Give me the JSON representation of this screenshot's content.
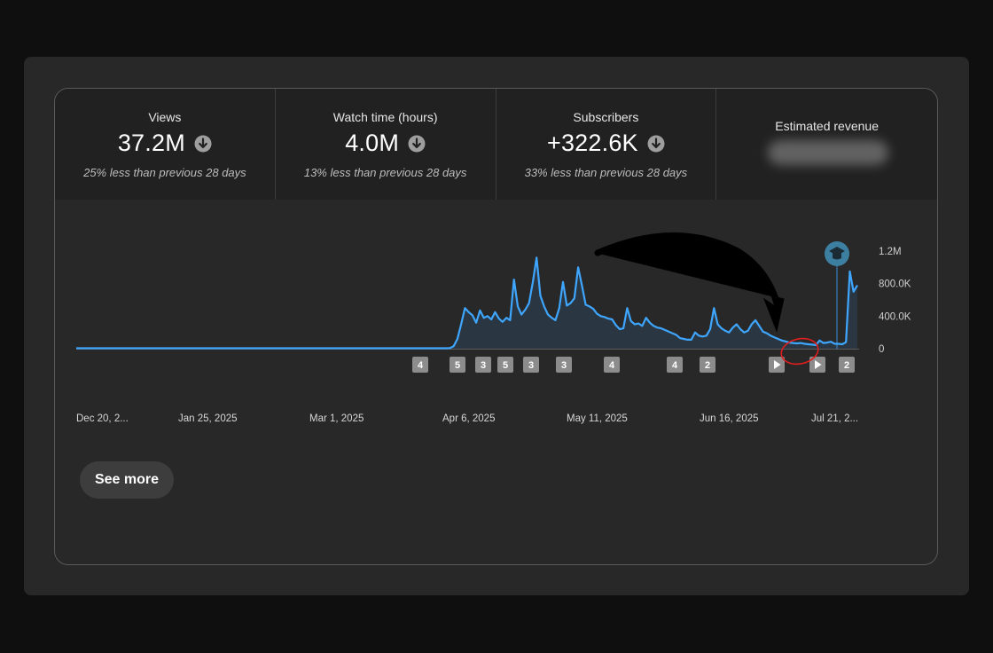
{
  "metrics": [
    {
      "label": "Views",
      "value": "37.2M",
      "trend": "down",
      "change": "25% less than previous 28 days"
    },
    {
      "label": "Watch time (hours)",
      "value": "4.0M",
      "trend": "down",
      "change": "13% less than previous 28 days"
    },
    {
      "label": "Subscribers",
      "value": "+322.6K",
      "trend": "down",
      "change": "33% less than previous 28 days"
    },
    {
      "label": "Estimated revenue",
      "value_hidden": true
    }
  ],
  "chart_data": {
    "type": "area",
    "x_tick_labels": [
      "Dec 20, 2...",
      "Jan 25, 2025",
      "Mar 1, 2025",
      "Apr 6, 2025",
      "May 11, 2025",
      "Jun 16, 2025",
      "Jul 21, 2..."
    ],
    "y_tick_labels": [
      "0",
      "400.0K",
      "800.0K",
      "1.2M"
    ],
    "ylim": [
      0,
      1200000
    ],
    "x_days": 214,
    "values": [
      5000,
      5000,
      5000,
      5000,
      5000,
      5000,
      5000,
      5000,
      5000,
      5000,
      5000,
      5000,
      5000,
      5000,
      5000,
      5000,
      5000,
      5000,
      5000,
      5000,
      5000,
      5000,
      5000,
      5000,
      5000,
      5000,
      5000,
      5000,
      5000,
      5000,
      5000,
      5000,
      5000,
      5000,
      5000,
      5000,
      5000,
      5000,
      5000,
      5000,
      5000,
      5000,
      5000,
      5000,
      5000,
      5000,
      5000,
      5000,
      5000,
      5000,
      5000,
      5000,
      5000,
      5000,
      5000,
      5000,
      5000,
      5000,
      5000,
      5000,
      5000,
      5000,
      5000,
      5000,
      5000,
      5000,
      5000,
      5000,
      5000,
      5000,
      5000,
      5000,
      5000,
      5000,
      5000,
      5000,
      5000,
      5000,
      5000,
      5000,
      5000,
      5000,
      5000,
      5000,
      5000,
      5000,
      5000,
      5000,
      5000,
      5000,
      5000,
      5000,
      5000,
      5000,
      5000,
      5000,
      5000,
      5000,
      5000,
      6000,
      30000,
      120000,
      300000,
      500000,
      450000,
      410000,
      320000,
      470000,
      380000,
      400000,
      360000,
      450000,
      370000,
      330000,
      380000,
      350000,
      850000,
      520000,
      420000,
      480000,
      560000,
      820000,
      1120000,
      650000,
      520000,
      420000,
      380000,
      350000,
      500000,
      820000,
      530000,
      560000,
      620000,
      1000000,
      780000,
      540000,
      520000,
      490000,
      430000,
      400000,
      390000,
      370000,
      360000,
      290000,
      240000,
      250000,
      500000,
      340000,
      300000,
      310000,
      280000,
      380000,
      320000,
      280000,
      260000,
      250000,
      230000,
      210000,
      190000,
      170000,
      130000,
      120000,
      110000,
      110000,
      200000,
      160000,
      150000,
      160000,
      240000,
      500000,
      300000,
      250000,
      220000,
      200000,
      260000,
      300000,
      240000,
      200000,
      220000,
      300000,
      350000,
      280000,
      210000,
      190000,
      160000,
      140000,
      120000,
      100000,
      90000,
      75000,
      70000,
      65000,
      70000,
      60000,
      55000,
      50000,
      45000,
      100000,
      70000,
      75000,
      85000,
      60000,
      60000,
      55000,
      80000,
      950000,
      700000,
      780000
    ],
    "annotation_markers": [
      "4",
      "5",
      "3",
      "5",
      "3",
      "3",
      "4",
      "4",
      "2",
      "play",
      "play",
      "2"
    ],
    "milestone_icon": "graduation-cap-icon",
    "series_color": "#3ea6ff"
  },
  "overlay": {
    "arrow_color": "#000000",
    "circle_color": "#e01e1e"
  },
  "actions": {
    "see_more": "See more"
  }
}
